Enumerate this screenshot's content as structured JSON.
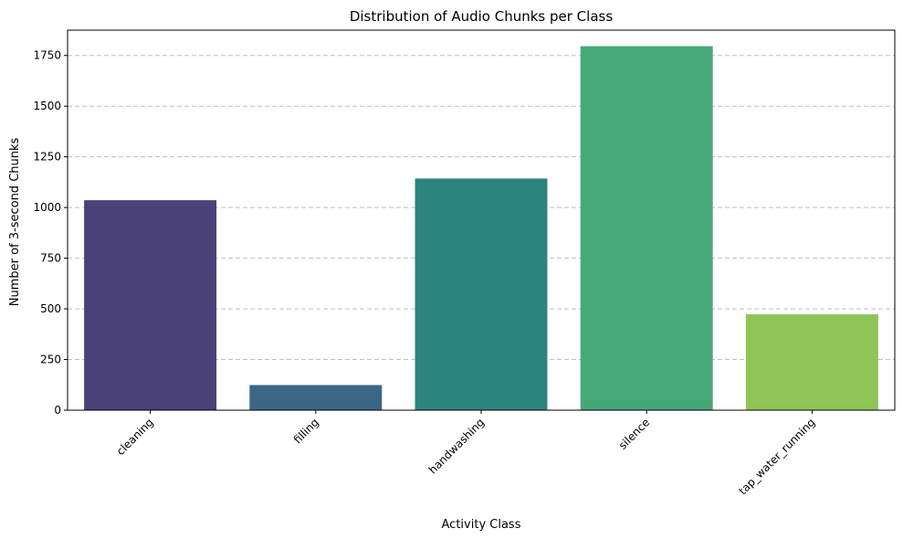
{
  "chart_data": {
    "type": "bar",
    "title": "Distribution of Audio Chunks per Class",
    "xlabel": "Activity Class",
    "ylabel": "Number of 3-second Chunks",
    "categories": [
      "cleaning",
      "filling",
      "handwashing",
      "silence",
      "tap_water_running"
    ],
    "values": [
      1036,
      124,
      1143,
      1796,
      473
    ],
    "colors": [
      "#4a4178",
      "#3c6685",
      "#2e847e",
      "#46a877",
      "#8ec556"
    ],
    "ylim": [
      0,
      1875
    ],
    "yticks": [
      0,
      250,
      500,
      750,
      1000,
      1250,
      1500,
      1750
    ],
    "grid": "y dashed",
    "legend": "none"
  }
}
